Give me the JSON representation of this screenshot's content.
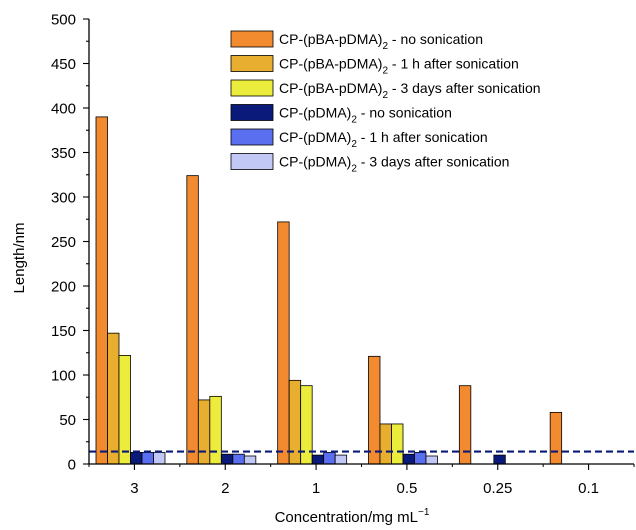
{
  "chart_data": {
    "type": "bar",
    "xlabel": "Concentration/mg mL",
    "xlabel_sup": "−1",
    "ylabel": "Length/nm",
    "ylim": [
      0,
      500
    ],
    "yticks": [
      0,
      50,
      100,
      150,
      200,
      250,
      300,
      350,
      400,
      450,
      500
    ],
    "categories": [
      "3",
      "2",
      "1",
      "0.5",
      "0.25",
      "0.1"
    ],
    "legend_position": "top-right",
    "series": [
      {
        "name": "CP-(pBA-pDMA)",
        "sub": "2",
        "suffix": " - no sonication",
        "color": "#f28a30",
        "values": [
          390,
          324,
          272,
          121,
          88,
          58
        ]
      },
      {
        "name": "CP-(pBA-pDMA)",
        "sub": "2",
        "suffix": " - 1 h after sonication",
        "color": "#e8ae30",
        "values": [
          147,
          72,
          94,
          45,
          null,
          null
        ]
      },
      {
        "name": "CP-(pBA-pDMA)",
        "sub": "2",
        "suffix": " - 3 days after sonication",
        "color": "#ecec3c",
        "values": [
          122,
          76,
          88,
          45,
          null,
          null
        ]
      },
      {
        "name": "CP-(pDMA)",
        "sub": "2",
        "suffix": " - no sonication",
        "color": "#0a1a7a",
        "values": [
          13,
          11,
          10,
          11,
          10,
          null
        ]
      },
      {
        "name": "CP-(pDMA)",
        "sub": "2",
        "suffix": " - 1 h after sonication",
        "color": "#5a6ef0",
        "values": [
          13,
          11,
          13,
          13,
          null,
          null
        ]
      },
      {
        "name": "CP-(pDMA)",
        "sub": "2",
        "suffix": " - 3 days after sonication",
        "color": "#c2c8f6",
        "values": [
          13,
          9,
          10,
          9,
          null,
          null
        ]
      }
    ],
    "reference_line": {
      "y": 14,
      "style": "dashed",
      "color": "#0a1a7a"
    }
  }
}
